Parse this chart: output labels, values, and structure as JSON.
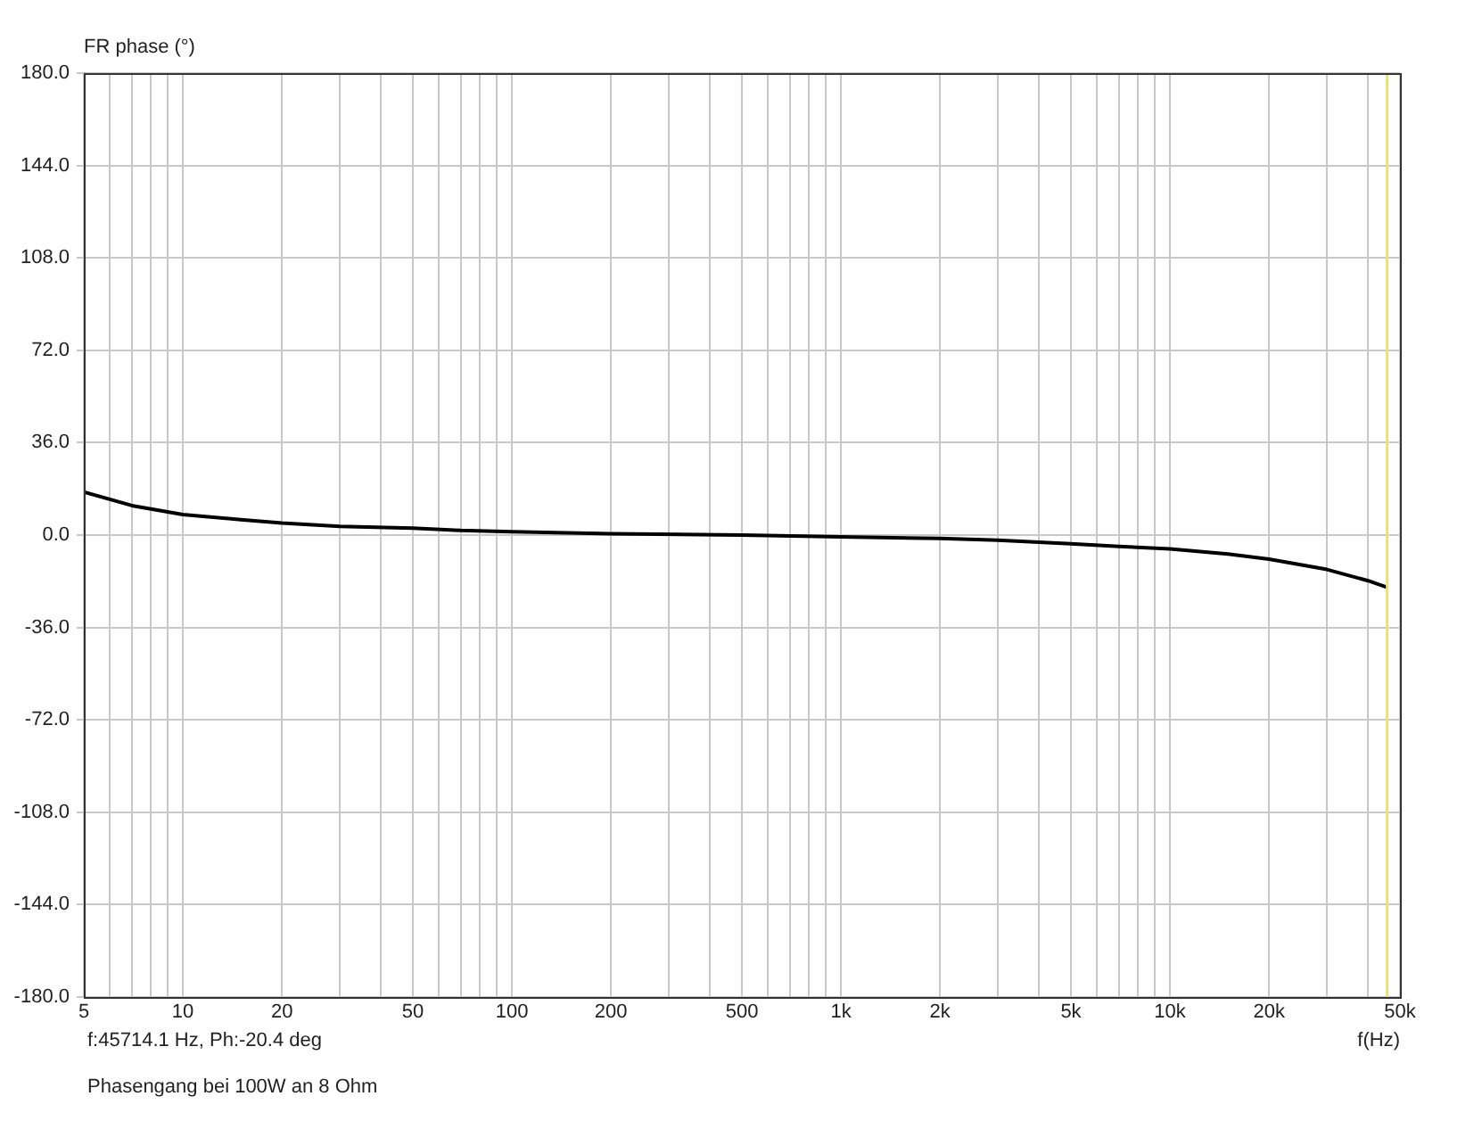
{
  "chart_data": {
    "type": "line",
    "ylabel": "FR phase (°)",
    "xlabel": "f(Hz)",
    "annotations": [
      "f:45714.1 Hz, Ph:-20.4 deg",
      "Phasengang bei 100W an 8 Ohm"
    ],
    "log": "x",
    "grid": true,
    "legend": false,
    "marker": "none",
    "line_style": "solid",
    "xlim": [
      5,
      50000
    ],
    "xticks": [
      5,
      {
        "value": 6,
        "label": null
      },
      {
        "value": 7,
        "label": null
      },
      {
        "value": 8,
        "label": null
      },
      {
        "value": 9,
        "label": null
      },
      10,
      20,
      {
        "value": 30,
        "label": null
      },
      {
        "value": 40,
        "label": null
      },
      50,
      {
        "value": 60,
        "label": null
      },
      {
        "value": 70,
        "label": null
      },
      {
        "value": 80,
        "label": null
      },
      {
        "value": 90,
        "label": null
      },
      100,
      200,
      {
        "value": 300,
        "label": null
      },
      {
        "value": 400,
        "label": null
      },
      500,
      {
        "value": 600,
        "label": null
      },
      {
        "value": 700,
        "label": null
      },
      {
        "value": 800,
        "label": null
      },
      {
        "value": 900,
        "label": null
      },
      {
        "value": 1000,
        "label": "1k"
      },
      {
        "value": 2000,
        "label": "2k"
      },
      {
        "value": 3000,
        "label": null
      },
      {
        "value": 4000,
        "label": null
      },
      {
        "value": 5000,
        "label": "5k"
      },
      {
        "value": 6000,
        "label": null
      },
      {
        "value": 7000,
        "label": null
      },
      {
        "value": 8000,
        "label": null
      },
      {
        "value": 9000,
        "label": null
      },
      {
        "value": 10000,
        "label": "10k"
      },
      {
        "value": 20000,
        "label": "20k"
      },
      {
        "value": 30000,
        "label": null
      },
      {
        "value": 40000,
        "label": null
      },
      {
        "value": 50000,
        "label": "50k"
      }
    ],
    "ylim": [
      -180,
      180
    ],
    "yticks": [
      {
        "value": -180,
        "label": "-180.0"
      },
      {
        "value": -144,
        "label": "-144.0"
      },
      {
        "value": -108,
        "label": "-108.0"
      },
      {
        "value": -72,
        "label": "-72.0"
      },
      {
        "value": -36,
        "label": "-36.0"
      },
      {
        "value": 0,
        "label": "0.0"
      },
      {
        "value": 36,
        "label": "36.0"
      },
      {
        "value": 72,
        "label": "72.0"
      },
      {
        "value": 108,
        "label": "108.0"
      },
      {
        "value": 144,
        "label": "144.0"
      },
      {
        "value": 180,
        "label": "180.0"
      }
    ],
    "ref_lines": [
      {
        "axis": "x",
        "value": 45714.1,
        "color": "#e6e27a"
      }
    ],
    "series": [
      {
        "color": "#000000",
        "x": [
          5,
          7,
          10,
          15,
          20,
          30,
          50,
          70,
          100,
          200,
          500,
          1000,
          2000,
          3000,
          5000,
          7000,
          10000,
          15000,
          20000,
          30000,
          40000,
          45714.1
        ],
        "values": [
          16.8,
          11.5,
          8,
          6,
          4.7,
          3.4,
          2.7,
          1.8,
          1.3,
          0.5,
          0,
          -0.7,
          -1.3,
          -2,
          -3.4,
          -4.4,
          -5.4,
          -7.4,
          -9.4,
          -13.4,
          -17.8,
          -20.4
        ]
      }
    ]
  }
}
